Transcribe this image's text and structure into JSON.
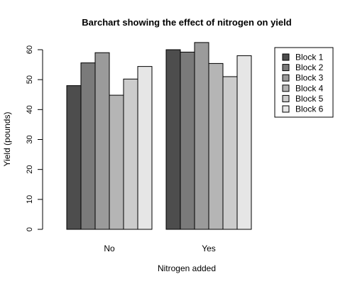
{
  "chart_data": {
    "type": "bar",
    "title": "Barchart showing the effect of nitrogen on yield",
    "xlabel": "Nitrogen added",
    "ylabel": "Yield (pounds)",
    "categories": [
      "No",
      "Yes"
    ],
    "ylim": [
      0,
      60
    ],
    "yticks": [
      "0",
      "10",
      "20",
      "30",
      "40",
      "50",
      "60"
    ],
    "grid": false,
    "legend_position": "top-right",
    "series": [
      {
        "name": "Block 1",
        "color": "#4d4d4d",
        "values": [
          48.0,
          60.0
        ]
      },
      {
        "name": "Block 2",
        "color": "#7a7a7a",
        "values": [
          55.6,
          59.2
        ]
      },
      {
        "name": "Block 3",
        "color": "#9b9b9b",
        "values": [
          59.0,
          62.4
        ]
      },
      {
        "name": "Block 4",
        "color": "#b5b5b5",
        "values": [
          44.8,
          55.4
        ]
      },
      {
        "name": "Block 5",
        "color": "#cccccc",
        "values": [
          50.2,
          51.0
        ]
      },
      {
        "name": "Block 6",
        "color": "#e6e6e6",
        "values": [
          54.4,
          58.0
        ]
      }
    ]
  }
}
